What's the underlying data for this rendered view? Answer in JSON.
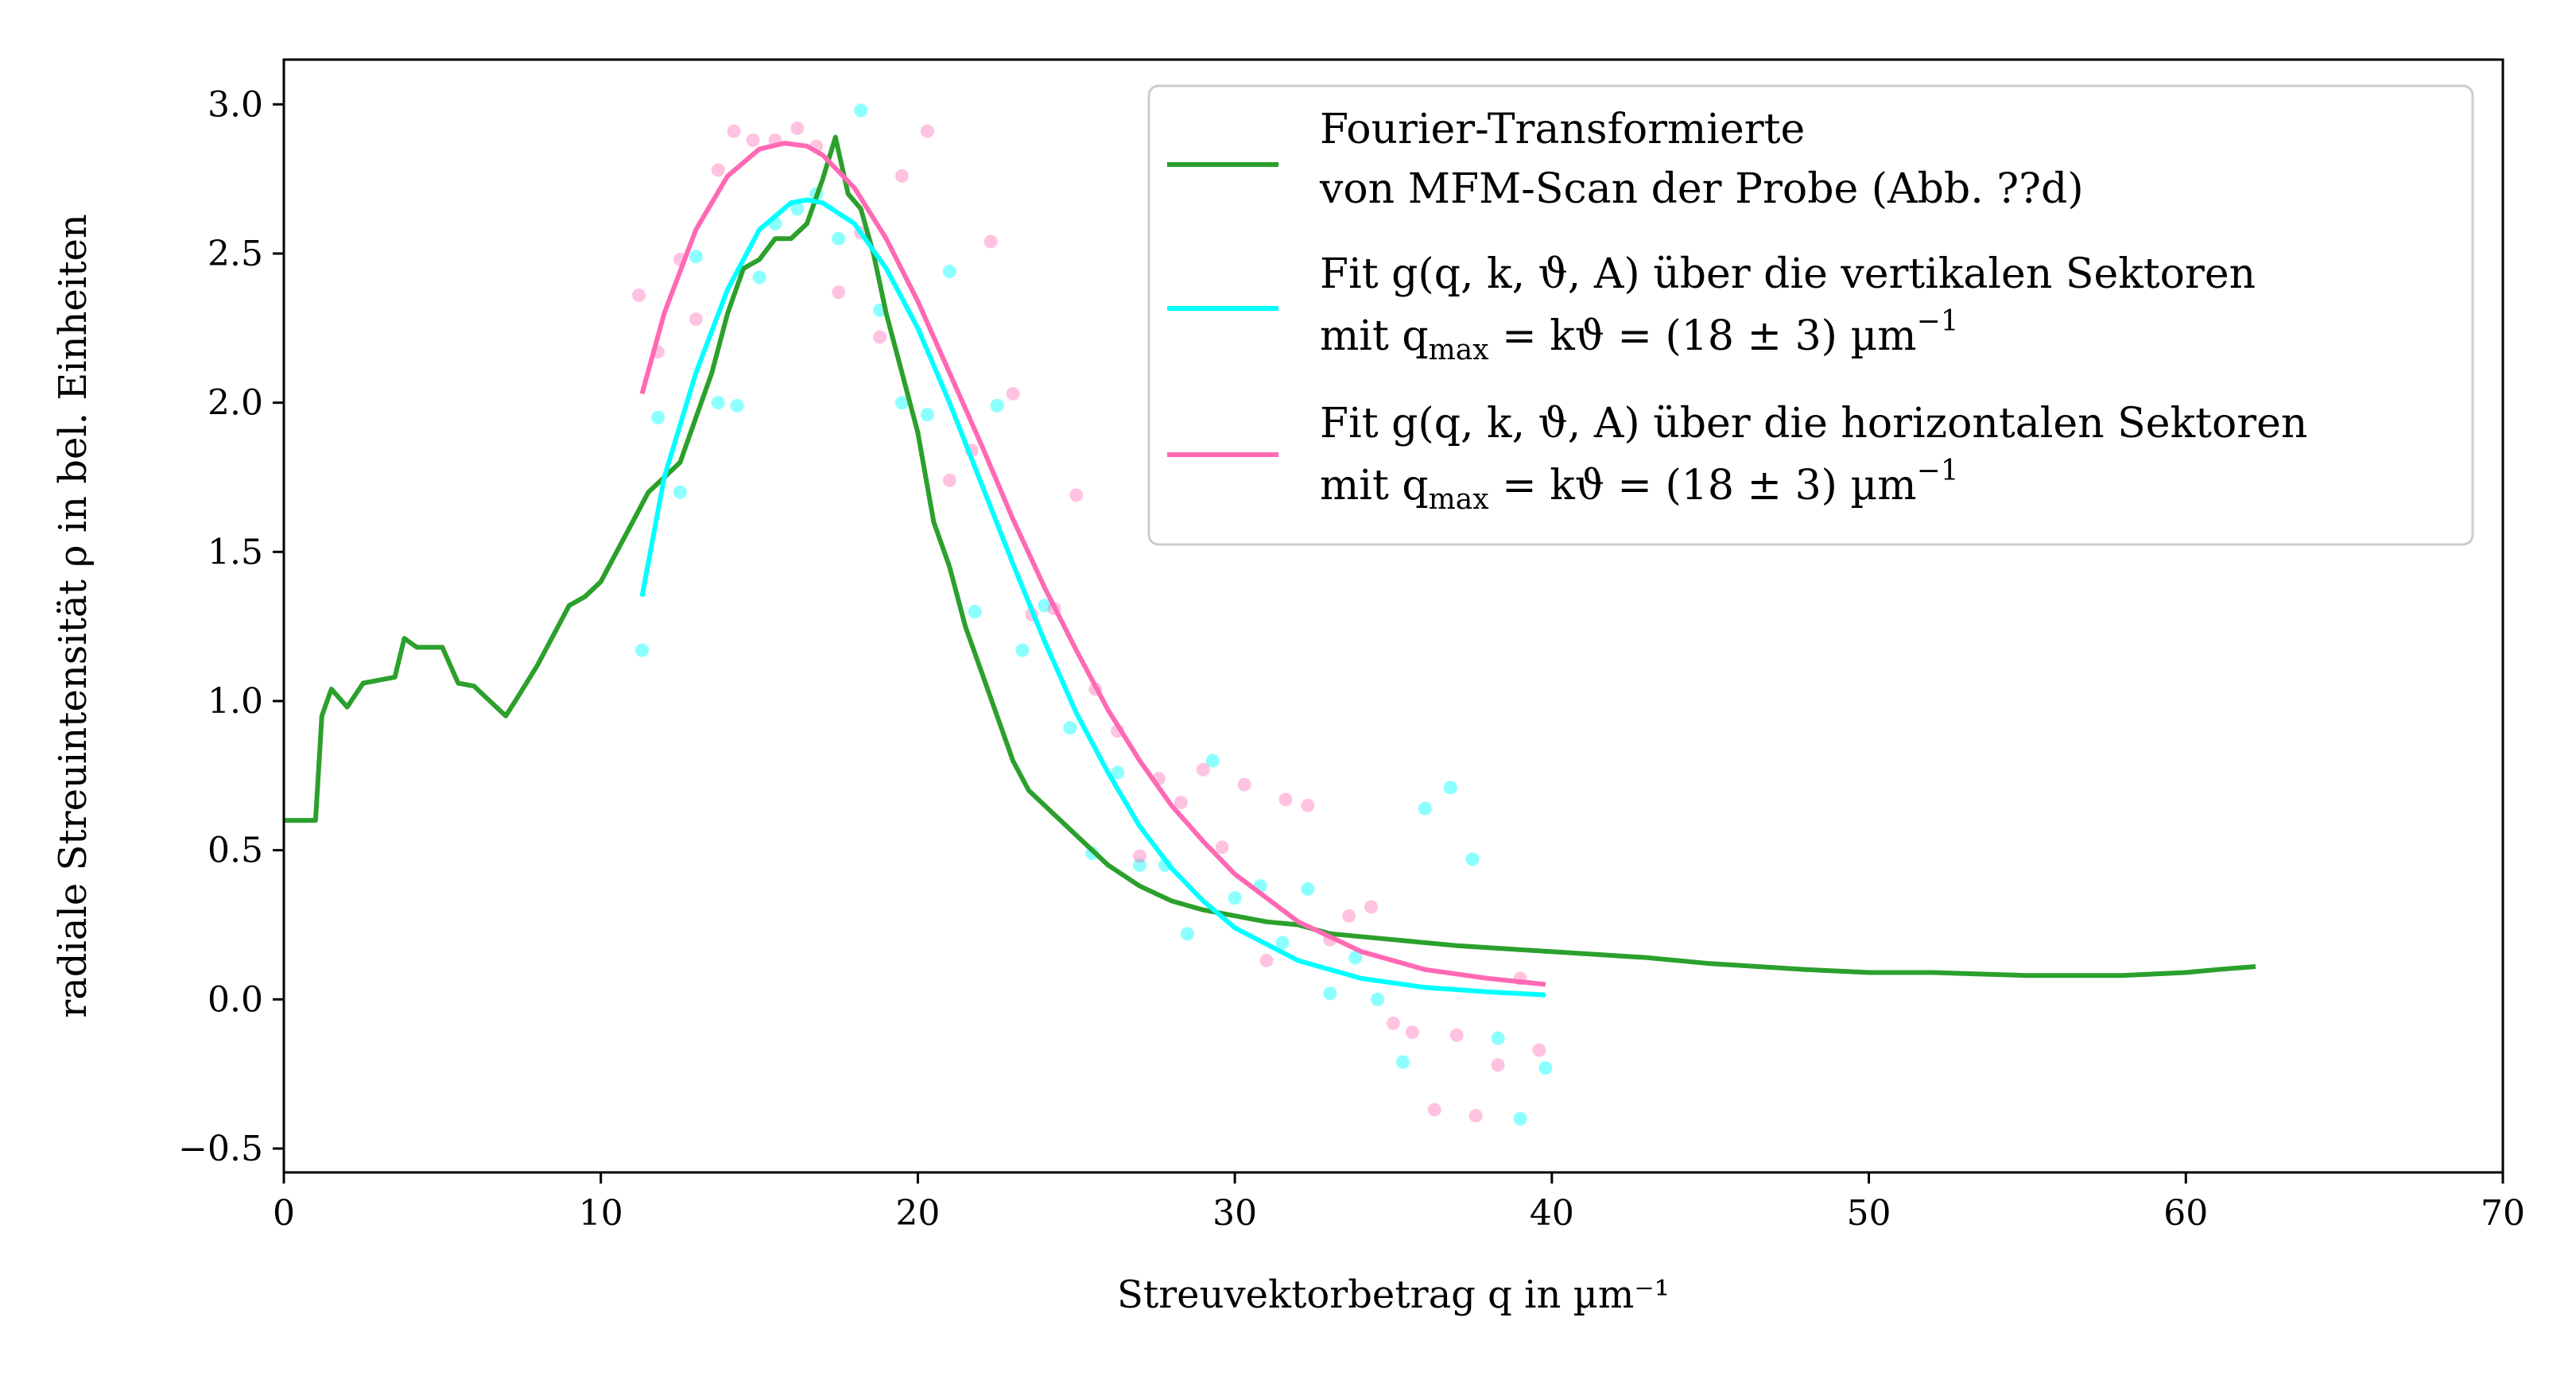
{
  "chart_data": {
    "type": "line",
    "xlabel": "Streuvektorbetrag q in µm⁻¹",
    "ylabel": "radiale Streuintensität ρ in bel. Einheiten",
    "xlim": [
      0,
      70
    ],
    "ylim": [
      -0.58,
      3.15
    ],
    "xticks": [
      0,
      10,
      20,
      30,
      40,
      50,
      60,
      70
    ],
    "yticks": [
      -0.5,
      0.0,
      0.5,
      1.0,
      1.5,
      2.0,
      2.5,
      3.0
    ],
    "xtick_labels": [
      "0",
      "10",
      "20",
      "30",
      "40",
      "50",
      "60",
      "70"
    ],
    "ytick_labels": [
      "−0.5",
      "0.0",
      "0.5",
      "1.0",
      "1.5",
      "2.0",
      "2.5",
      "3.0"
    ],
    "grid": false,
    "legend_position": "top-right",
    "series": [
      {
        "name_line1": "Fourier-Transformierte",
        "name_line2": "von MFM-Scan der Probe (Abb. ??d)",
        "kind": "line",
        "color": "#2ca02c",
        "x": [
          0,
          1.0,
          1.2,
          1.5,
          2.0,
          2.5,
          3.0,
          3.5,
          3.8,
          4.2,
          5.0,
          5.5,
          6.0,
          6.5,
          7.0,
          7.3,
          8.0,
          8.5,
          9.0,
          9.5,
          10.0,
          10.5,
          11.0,
          11.5,
          12.0,
          12.5,
          13.0,
          13.5,
          14.0,
          14.5,
          15.0,
          15.5,
          16.0,
          16.5,
          17.0,
          17.4,
          17.8,
          18.2,
          18.6,
          19.0,
          19.5,
          20.0,
          20.5,
          21.0,
          21.5,
          22.0,
          22.5,
          23.0,
          23.5,
          24.0,
          25.0,
          26.0,
          27.0,
          28.0,
          29.0,
          30.0,
          31.0,
          32.0,
          33.0,
          35.0,
          37.0,
          40.0,
          43.0,
          45.0,
          48.0,
          50.0,
          52.0,
          55.0,
          58.0,
          60.0,
          61.0,
          62.2
        ],
        "y": [
          0.6,
          0.6,
          0.95,
          1.04,
          0.98,
          1.06,
          1.07,
          1.08,
          1.21,
          1.18,
          1.18,
          1.06,
          1.05,
          1.0,
          0.95,
          1.0,
          1.12,
          1.22,
          1.32,
          1.35,
          1.4,
          1.5,
          1.6,
          1.7,
          1.75,
          1.8,
          1.95,
          2.1,
          2.3,
          2.45,
          2.48,
          2.55,
          2.55,
          2.6,
          2.75,
          2.89,
          2.7,
          2.65,
          2.5,
          2.3,
          2.1,
          1.9,
          1.6,
          1.45,
          1.25,
          1.1,
          0.95,
          0.8,
          0.7,
          0.65,
          0.55,
          0.45,
          0.38,
          0.33,
          0.3,
          0.28,
          0.26,
          0.25,
          0.22,
          0.2,
          0.18,
          0.16,
          0.14,
          0.12,
          0.1,
          0.09,
          0.09,
          0.08,
          0.08,
          0.09,
          0.1,
          0.11
        ]
      },
      {
        "name_line1": "Fit g(q, k, ϑ, A) über die vertikalen Sektoren",
        "name_line2": "mit q",
        "name_line2_sub": "max",
        "name_line2_rest": " = kϑ = (18 ± 3) µm",
        "name_line2_sup": "−1",
        "kind": "line",
        "color": "#00ffff",
        "x": [
          11.3,
          12.0,
          13.0,
          14.0,
          15.0,
          16.0,
          16.5,
          17.0,
          18.0,
          19.0,
          20.0,
          21.0,
          22.0,
          23.0,
          24.0,
          25.0,
          26.0,
          27.0,
          28.0,
          29.0,
          30.0,
          32.0,
          34.0,
          36.0,
          38.0,
          39.8
        ],
        "y": [
          1.35,
          1.75,
          2.1,
          2.38,
          2.58,
          2.67,
          2.68,
          2.67,
          2.6,
          2.45,
          2.25,
          2.0,
          1.73,
          1.46,
          1.2,
          0.96,
          0.76,
          0.58,
          0.44,
          0.33,
          0.24,
          0.13,
          0.07,
          0.04,
          0.025,
          0.015
        ]
      },
      {
        "name_line1": "Fit g(q, k, ϑ, A) über die horizontalen Sektoren",
        "name_line2": "mit q",
        "name_line2_sub": "max",
        "name_line2_rest": " = kϑ = (18 ± 3) µm",
        "name_line2_sup": "−1",
        "kind": "line",
        "color": "#ff69b4",
        "x": [
          11.3,
          12.0,
          13.0,
          14.0,
          15.0,
          15.8,
          16.5,
          17.0,
          18.0,
          19.0,
          20.0,
          21.0,
          22.0,
          23.0,
          24.0,
          25.0,
          26.0,
          27.0,
          28.0,
          29.0,
          30.0,
          32.0,
          34.0,
          36.0,
          38.0,
          39.8
        ],
        "y": [
          2.03,
          2.3,
          2.58,
          2.76,
          2.85,
          2.87,
          2.86,
          2.83,
          2.72,
          2.55,
          2.34,
          2.1,
          1.86,
          1.61,
          1.38,
          1.17,
          0.97,
          0.8,
          0.65,
          0.53,
          0.42,
          0.26,
          0.16,
          0.1,
          0.07,
          0.05
        ]
      },
      {
        "kind": "scatter",
        "color": "#00ffff",
        "x": [
          11.3,
          11.8,
          12.5,
          13.0,
          13.7,
          14.3,
          15.0,
          15.5,
          16.2,
          16.8,
          17.5,
          18.2,
          18.8,
          19.5,
          20.3,
          21.0,
          21.8,
          22.5,
          23.3,
          24.0,
          24.8,
          25.5,
          26.3,
          27.0,
          27.8,
          28.5,
          29.3,
          30.0,
          30.8,
          31.5,
          32.3,
          33.0,
          33.8,
          34.5,
          35.3,
          36.0,
          36.8,
          37.5,
          38.3,
          39.0,
          39.8
        ],
        "y": [
          1.17,
          1.95,
          1.7,
          2.49,
          2.0,
          1.99,
          2.42,
          2.6,
          2.65,
          2.7,
          2.55,
          2.98,
          2.31,
          2.0,
          1.96,
          2.44,
          1.3,
          1.99,
          1.17,
          1.32,
          0.91,
          0.49,
          0.76,
          0.45,
          0.45,
          0.22,
          0.8,
          0.34,
          0.38,
          0.19,
          0.37,
          0.02,
          0.14,
          0.0,
          -0.21,
          0.64,
          0.71,
          0.47,
          -0.13,
          -0.4,
          -0.23
        ]
      },
      {
        "kind": "scatter",
        "color": "#ff69b4",
        "x": [
          11.2,
          11.8,
          12.5,
          13.0,
          13.7,
          14.2,
          14.8,
          15.5,
          16.2,
          16.8,
          17.5,
          18.2,
          18.8,
          19.5,
          20.3,
          21.0,
          21.7,
          22.3,
          23.0,
          23.6,
          24.3,
          25.0,
          25.6,
          26.3,
          27.0,
          27.6,
          28.3,
          29.0,
          29.6,
          30.3,
          31.0,
          31.6,
          32.3,
          33.0,
          33.6,
          34.3,
          35.0,
          35.6,
          36.3,
          37.0,
          37.6,
          38.3,
          39.0,
          39.6
        ],
        "y": [
          2.36,
          2.17,
          2.48,
          2.28,
          2.78,
          2.91,
          2.88,
          2.88,
          2.92,
          2.86,
          2.37,
          2.57,
          2.22,
          2.76,
          2.91,
          1.74,
          1.84,
          2.54,
          2.03,
          1.29,
          1.31,
          1.69,
          1.04,
          0.9,
          0.48,
          0.74,
          0.66,
          0.77,
          0.51,
          0.72,
          0.13,
          0.67,
          0.65,
          0.2,
          0.28,
          0.31,
          -0.08,
          -0.11,
          -0.37,
          -0.12,
          -0.39,
          -0.22,
          0.07,
          -0.17
        ]
      }
    ]
  }
}
